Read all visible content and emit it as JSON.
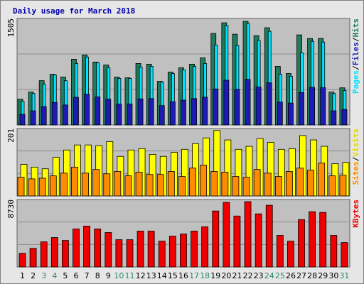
{
  "title": "Daily usage for March 2018",
  "categories": [
    "1",
    "2",
    "3",
    "4",
    "5",
    "6",
    "7",
    "8",
    "9",
    "10",
    "11",
    "12",
    "13",
    "14",
    "15",
    "16",
    "17",
    "18",
    "19",
    "20",
    "21",
    "22",
    "23",
    "24",
    "25",
    "26",
    "27",
    "28",
    "29",
    "30",
    "31"
  ],
  "category_colors": [
    "#000000",
    "#000000",
    "#2a8a6a",
    "#2a8a6a",
    "#000000",
    "#000000",
    "#000000",
    "#000000",
    "#000000",
    "#2a8a6a",
    "#2a8a6a",
    "#000000",
    "#000000",
    "#000000",
    "#000000",
    "#000000",
    "#2a8a6a",
    "#2a8a6a",
    "#000000",
    "#000000",
    "#000000",
    "#000000",
    "#000000",
    "#2a8a6a",
    "#2a8a6a",
    "#000000",
    "#000000",
    "#000000",
    "#000000",
    "#000000",
    "#2a8a6a"
  ],
  "legend_separator": "/",
  "chart_data": [
    {
      "type": "bar",
      "ylim": [
        0,
        1505
      ],
      "yticks": [
        1505
      ],
      "series": [
        {
          "name": "Pages",
          "color": "#00e4ff",
          "values": [
            333,
            444,
            576,
            707,
            626,
            869,
            960,
            880,
            808,
            657,
            657,
            818,
            828,
            606,
            727,
            778,
            828,
            869,
            1131,
            1404,
            1121,
            1434,
            1192,
            1323,
            717,
            687,
            1020,
            1182,
            1172,
            444,
            485
          ]
        },
        {
          "name": "Files",
          "color": "#1c1cb4",
          "values": [
            150,
            200,
            259,
            318,
            282,
            391,
            432,
            396,
            364,
            296,
            296,
            368,
            373,
            273,
            327,
            350,
            373,
            391,
            509,
            632,
            504,
            645,
            536,
            595,
            323,
            309,
            459,
            532,
            527,
            200,
            218
          ]
        },
        {
          "name": "Hits",
          "color": "#1f7a5e",
          "values": [
            364,
            465,
            626,
            717,
            677,
            929,
            990,
            889,
            848,
            677,
            667,
            869,
            859,
            616,
            747,
            808,
            859,
            949,
            1293,
            1444,
            1283,
            1465,
            1263,
            1374,
            828,
            727,
            1273,
            1222,
            1222,
            465,
            525
          ]
        }
      ]
    },
    {
      "type": "bar",
      "ylim": [
        0,
        201
      ],
      "yticks": [
        201
      ],
      "series": [
        {
          "name": "Sites",
          "color": "#ff8c00",
          "values": [
            56,
            51,
            53,
            60,
            68,
            86,
            68,
            79,
            66,
            73,
            60,
            71,
            64,
            64,
            73,
            58,
            83,
            92,
            73,
            71,
            58,
            56,
            79,
            68,
            58,
            73,
            83,
            77,
            98,
            60,
            62
          ]
        },
        {
          "name": "Visits",
          "color": "#ffff00",
          "values": [
            94,
            86,
            81,
            115,
            137,
            152,
            152,
            150,
            162,
            118,
            137,
            141,
            124,
            118,
            130,
            139,
            156,
            173,
            195,
            167,
            139,
            148,
            171,
            160,
            139,
            141,
            180,
            167,
            148,
            96,
            100
          ]
        }
      ]
    },
    {
      "type": "bar",
      "ylim": [
        0,
        8730
      ],
      "yticks": [
        8730
      ],
      "series": [
        {
          "name": "KBytes",
          "color": "#ee0000",
          "values": [
            1765,
            2415,
            3252,
            3809,
            3437,
            4924,
            5295,
            4924,
            4459,
            3530,
            3530,
            4645,
            4645,
            3344,
            3995,
            4273,
            4645,
            5202,
            7246,
            8361,
            6596,
            8454,
            6875,
            7989,
            4088,
            3344,
            6131,
            7153,
            7060,
            4088,
            3159
          ]
        }
      ]
    }
  ]
}
